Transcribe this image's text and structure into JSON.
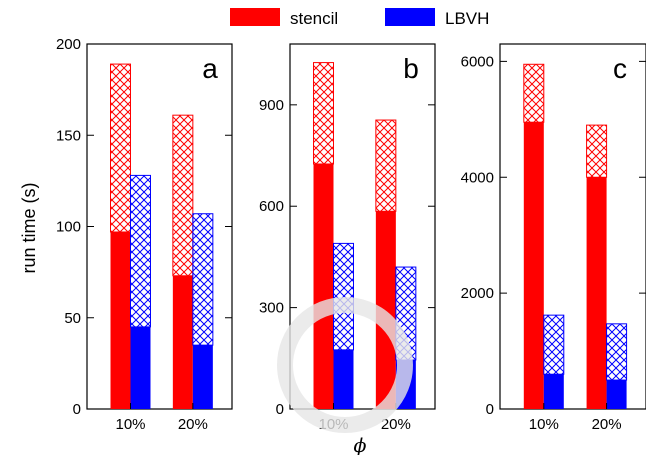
{
  "legend": {
    "items": [
      {
        "label": "stencil",
        "color": "#ff0000"
      },
      {
        "label": "LBVH",
        "color": "#0000ff"
      }
    ]
  },
  "ylabel": "run time (s)",
  "xlabel": "ϕ",
  "chart_data": [
    {
      "type": "bar",
      "panel": "a",
      "categories": [
        "10%",
        "20%"
      ],
      "ylim": [
        0,
        200
      ],
      "yticks": [
        "0",
        "50",
        "100",
        "150",
        "200"
      ],
      "grid": false,
      "series": [
        {
          "name": "stencil",
          "solid": [
            97,
            73
          ],
          "total": [
            189,
            161
          ]
        },
        {
          "name": "LBVH",
          "solid": [
            45,
            35
          ],
          "total": [
            128,
            107
          ]
        }
      ]
    },
    {
      "type": "bar",
      "panel": "b",
      "categories": [
        "10%",
        "20%"
      ],
      "ylim": [
        0,
        1080
      ],
      "yticks": [
        "0",
        "300",
        "600",
        "900"
      ],
      "grid": false,
      "series": [
        {
          "name": "stencil",
          "solid": [
            725,
            585
          ],
          "total": [
            1025,
            855
          ]
        },
        {
          "name": "LBVH",
          "solid": [
            175,
            145
          ],
          "total": [
            490,
            420
          ]
        }
      ]
    },
    {
      "type": "bar",
      "panel": "c",
      "categories": [
        "10%",
        "20%"
      ],
      "ylim": [
        0,
        6300
      ],
      "yticks": [
        "0",
        "2000",
        "4000",
        "6000"
      ],
      "grid": false,
      "series": [
        {
          "name": "stencil",
          "solid": [
            4950,
            4000
          ],
          "total": [
            5950,
            4900
          ]
        },
        {
          "name": "LBVH",
          "solid": [
            600,
            500
          ],
          "total": [
            1620,
            1470
          ]
        }
      ]
    }
  ]
}
